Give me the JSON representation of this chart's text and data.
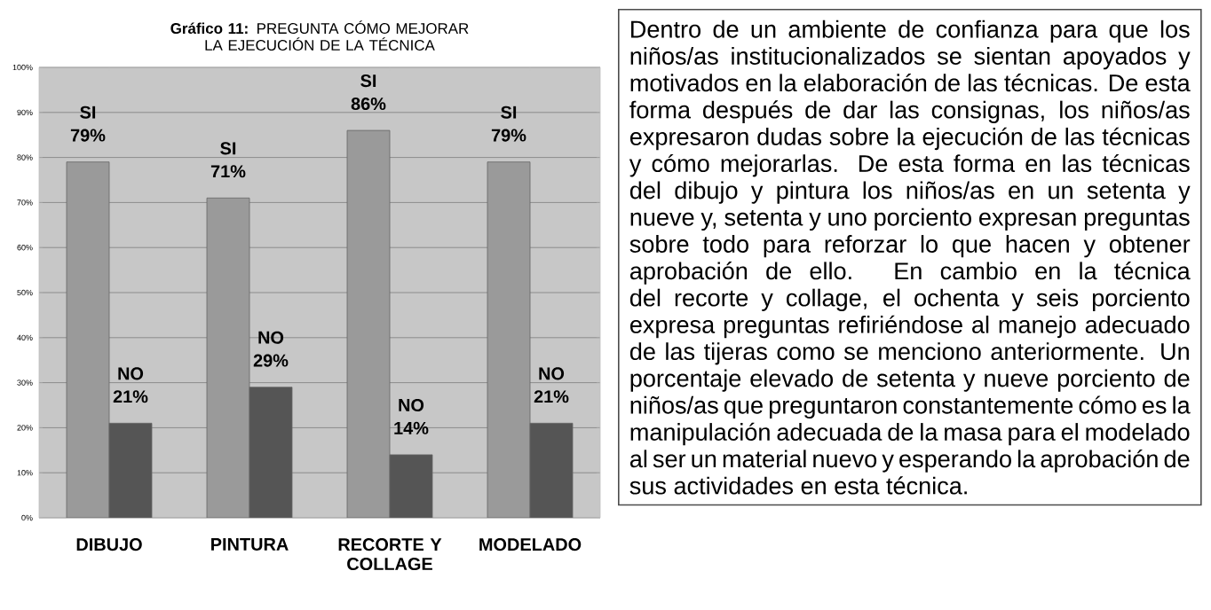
{
  "chart_data": [
    {
      "type": "bar",
      "title": "**Gráfico 11:** PREGUNTA CÓMO MEJORAR LA EJECUCIÓN DE LA TÉCNICA",
      "categories": [
        "DIBUJO",
        "PINTURA",
        "RECORTE Y COLLAGE",
        "MODELADO"
      ],
      "series": [
        {
          "name": "SI",
          "color": "#9a9a9a",
          "values": [
            79,
            71,
            86,
            79
          ],
          "value_labels": [
            "79%",
            "71%",
            "86%",
            "79%"
          ]
        },
        {
          "name": "NO",
          "color": "#555555",
          "values": [
            21,
            29,
            14,
            21
          ],
          "value_labels": [
            "21%",
            "29%",
            "14%",
            "21%"
          ]
        }
      ],
      "ylim": [
        0,
        100
      ],
      "yticks": [
        {
          "value": 0,
          "label": "0%"
        },
        {
          "value": 10,
          "label": "10%"
        },
        {
          "value": 20,
          "label": "20%"
        },
        {
          "value": 30,
          "label": "30%"
        },
        {
          "value": 40,
          "label": "40%"
        },
        {
          "value": 50,
          "label": "50%"
        },
        {
          "value": 60,
          "label": "60%"
        },
        {
          "value": 70,
          "label": "70%"
        },
        {
          "value": 80,
          "label": "80%"
        },
        {
          "value": 90,
          "label": "90%"
        },
        {
          "value": 100,
          "label": "100%"
        }
      ],
      "grid": "y"
    },
    {
      "type": "other",
      "annotations": [
        "Dentro de un ambiente de confianza para que los niños/as institucionalizados se sientan apoyados y motivados en la elaboración de las técnicas. De esta forma después de dar las consignas, los niños/as expresaron dudas sobre la ejecución de las técnicas y cómo mejorarlas. De esta forma en las técnicas del dibujo y pintura los niños/as en un setenta y nueve y, setenta y uno porciento expresan preguntas sobre todo para reforzar lo que hacen y obtener aprobación de ello. En cambio en la técnica del recorte y collage, el ochenta y seis porciento expresa preguntas refiriéndose al manejo adecuado de las tijeras como se menciono anteriormente. Un porcentaje elevado de setenta y nueve porciento de niños/as que preguntaron constantemente cómo es la manipulación adecuada de la masa para el modelado al ser un material nuevo y esperando la aprobación de sus actividades en esta técnica."
      ]
    }
  ]
}
